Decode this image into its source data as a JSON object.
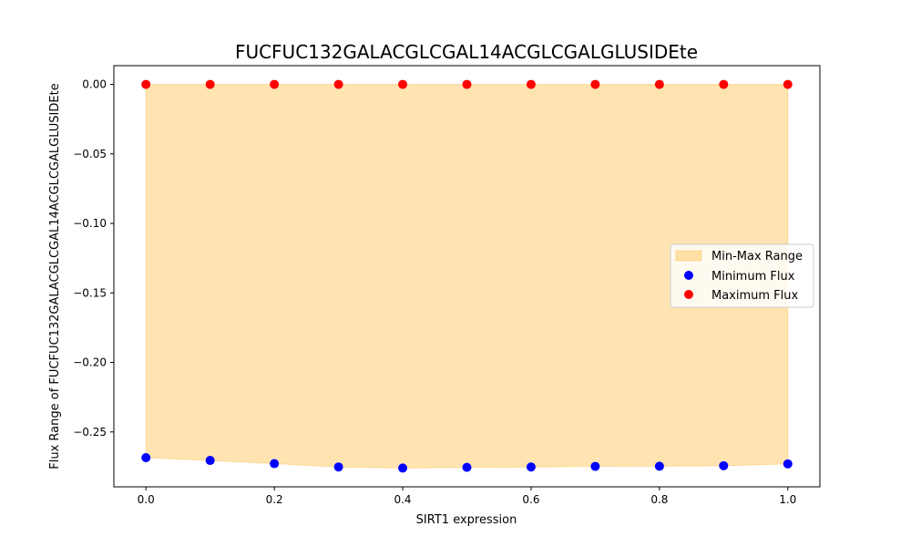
{
  "chart_data": {
    "type": "scatter",
    "title": "FUCFUC132GALACGLCGAL14ACGLCGALGLUSIDEte",
    "xlabel": "SIRT1 expression",
    "ylabel": "Flux Range of FUCFUC132GALACGLCGAL14ACGLCGALGLUSIDEte",
    "xlim": [
      -0.05,
      1.05
    ],
    "ylim": [
      -0.2895,
      0.0135
    ],
    "x_ticks": [
      0.0,
      0.2,
      0.4,
      0.6,
      0.8,
      1.0
    ],
    "x_tick_labels": [
      "0.0",
      "0.2",
      "0.4",
      "0.6",
      "0.8",
      "1.0"
    ],
    "y_ticks": [
      0.0,
      -0.05,
      -0.1,
      -0.15,
      -0.2,
      -0.25
    ],
    "y_tick_labels": [
      "0.00",
      "−0.05",
      "−0.10",
      "−0.15",
      "−0.20",
      "−0.25"
    ],
    "grid": false,
    "legend_position": "center-right",
    "x": [
      0.0,
      0.1,
      0.2,
      0.3,
      0.4,
      0.5,
      0.6,
      0.7,
      0.8,
      0.9,
      1.0
    ],
    "series": [
      {
        "name": "Minimum Flux",
        "color": "#0000ff",
        "values": [
          -0.2685,
          -0.2705,
          -0.2728,
          -0.2752,
          -0.276,
          -0.2755,
          -0.2752,
          -0.2748,
          -0.2747,
          -0.2743,
          -0.273
        ]
      },
      {
        "name": "Maximum Flux",
        "color": "#ff0000",
        "values": [
          0,
          0,
          0,
          0,
          0,
          0,
          0,
          0,
          0,
          0,
          0
        ]
      }
    ],
    "fill": {
      "name": "Min-Max Range",
      "color": "#ffa500",
      "opacity": 0.3
    }
  }
}
